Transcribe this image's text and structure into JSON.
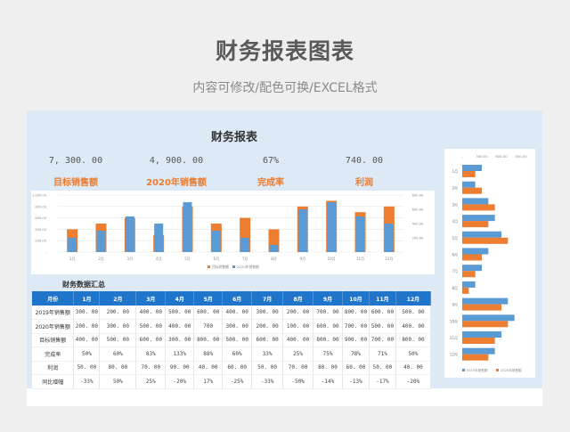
{
  "header": {
    "title": "财务报表图表",
    "subtitle": "内容可修改/配色可换/EXCEL格式"
  },
  "report": {
    "title": "财务报表",
    "kpis": [
      {
        "value": "7, 300. 00",
        "label": "目标销售额"
      },
      {
        "value": "4, 900. 00",
        "label": "2020年销售额"
      },
      {
        "value": "67%",
        "label": "完成率"
      },
      {
        "value": "740. 00",
        "label": "利润"
      }
    ]
  },
  "colors": {
    "orange": "#ed7d31",
    "blue": "#5b9bd5",
    "header_blue": "#1f75c9",
    "panel_bg": "#dde9f5"
  },
  "table": {
    "title": "财务数据汇总",
    "headers": [
      "月份",
      "1月",
      "2月",
      "3月",
      "4月",
      "5月",
      "6月",
      "7月",
      "8月",
      "9月",
      "10月",
      "11月",
      "12月"
    ],
    "rows": [
      [
        "2019年销售额",
        "300. 00",
        "200. 00",
        "400. 00",
        "500. 00",
        "600. 00",
        "400. 00",
        "300. 00",
        "200. 00",
        "700. 00",
        "800. 00",
        "600. 00",
        "500. 00"
      ],
      [
        "2020年销售额",
        "200. 00",
        "300. 00",
        "500. 00",
        "400. 00",
        "700",
        "300. 00",
        "200. 00",
        "100. 00",
        "600. 00",
        "700. 00",
        "500. 00",
        "400. 00"
      ],
      [
        "目标销售额",
        "400. 00",
        "500. 00",
        "600. 00",
        "300. 00",
        "800. 00",
        "500. 00",
        "600. 00",
        "400. 00",
        "800. 00",
        "900. 00",
        "700. 00",
        "800. 00"
      ],
      [
        "完成率",
        "50%",
        "60%",
        "83%",
        "133%",
        "88%",
        "60%",
        "33%",
        "25%",
        "75%",
        "78%",
        "71%",
        "50%"
      ],
      [
        "利润",
        "50. 00",
        "80. 00",
        "70. 00",
        "90. 00",
        "40. 00",
        "60. 00",
        "50. 00",
        "70. 00",
        "80. 00",
        "60. 00",
        "50. 00",
        "40. 00"
      ],
      [
        "同比增幅",
        "-33%",
        "50%",
        "25%",
        "-20%",
        "17%",
        "-25%",
        "-33%",
        "-50%",
        "-14%",
        "-13%",
        "-17%",
        "-20%"
      ]
    ]
  },
  "chart_data": [
    {
      "type": "bar",
      "title": "",
      "categories": [
        "1月",
        "2月",
        "3月",
        "4月",
        "5月",
        "6月",
        "7月",
        "8月",
        "9月",
        "10月",
        "11月",
        "12月"
      ],
      "series": [
        {
          "name": "目标销售额",
          "axis": "left",
          "color": "#ed7d31",
          "values": [
            400,
            500,
            600,
            300,
            800,
            500,
            600,
            400,
            800,
            900,
            700,
            800
          ]
        },
        {
          "name": "2020年销售额",
          "axis": "right",
          "color": "#5b9bd5",
          "values": [
            200,
            300,
            500,
            400,
            700,
            300,
            200,
            100,
            600,
            700,
            500,
            400
          ]
        }
      ],
      "left_axis": {
        "ylim": [
          0,
          1000
        ],
        "ticks": [
          "-",
          "200.00",
          "400.00",
          "600.00",
          "800.00",
          "1,000.00"
        ]
      },
      "right_axis": {
        "ylim": [
          0,
          800
        ],
        "ticks": [
          "-",
          "200.00",
          "400.00",
          "600.00",
          "800.00"
        ]
      },
      "grid": true,
      "legend_position": "bottom"
    },
    {
      "type": "bar",
      "orientation": "horizontal",
      "title": "",
      "categories": [
        "1月",
        "2月",
        "3月",
        "4月",
        "5月",
        "6月",
        "7月",
        "8月",
        "9月",
        "10月",
        "11月",
        "12月"
      ],
      "series": [
        {
          "name": "2019年销售额",
          "color": "#5b9bd5",
          "values": [
            300,
            200,
            400,
            500,
            600,
            400,
            300,
            200,
            700,
            800,
            600,
            500
          ]
        },
        {
          "name": "2020年销售额",
          "color": "#ed7d31",
          "values": [
            200,
            300,
            500,
            400,
            700,
            300,
            200,
            100,
            600,
            700,
            500,
            400
          ]
        }
      ],
      "xlim": [
        0,
        1050
      ],
      "xticks": [
        "-",
        "300.00",
        "600.00",
        "900.00"
      ],
      "legend_position": "bottom"
    }
  ]
}
